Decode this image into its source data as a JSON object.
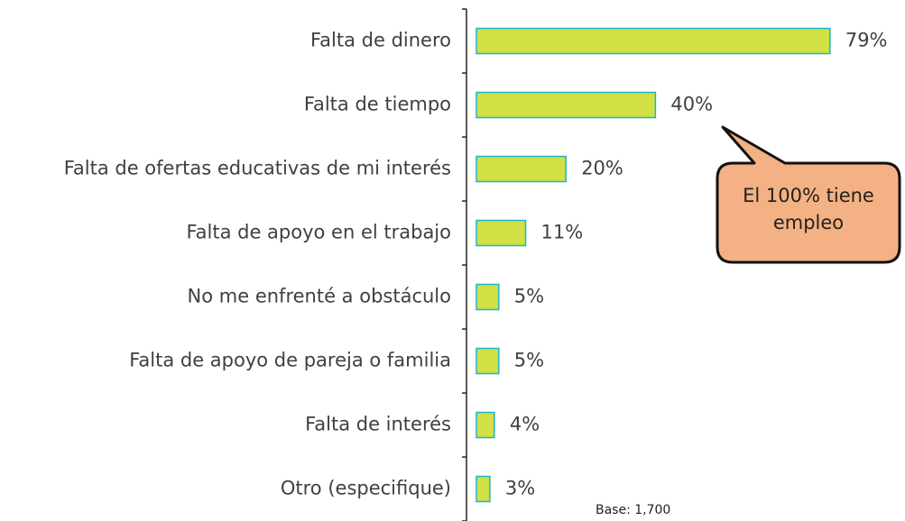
{
  "chart_data": {
    "type": "barh",
    "categories": [
      "Falta de dinero",
      "Falta de tiempo",
      "Falta de ofertas educativas de mi interés",
      "Falta de apoyo en el trabajo",
      "No me enfrenté a obstáculo",
      "Falta de apoyo de pareja o familia",
      "Falta de interés",
      "Otro (especifique)"
    ],
    "values": [
      79,
      40,
      20,
      11,
      5,
      5,
      4,
      3
    ],
    "value_labels": [
      "79%",
      "40%",
      "20%",
      "11%",
      "5%",
      "5%",
      "4%",
      "3%"
    ],
    "color": "#d0e045",
    "edge_color": "#1fb3c4",
    "annotation": "El 100% tiene empleo",
    "note": "Base: 1,700"
  }
}
